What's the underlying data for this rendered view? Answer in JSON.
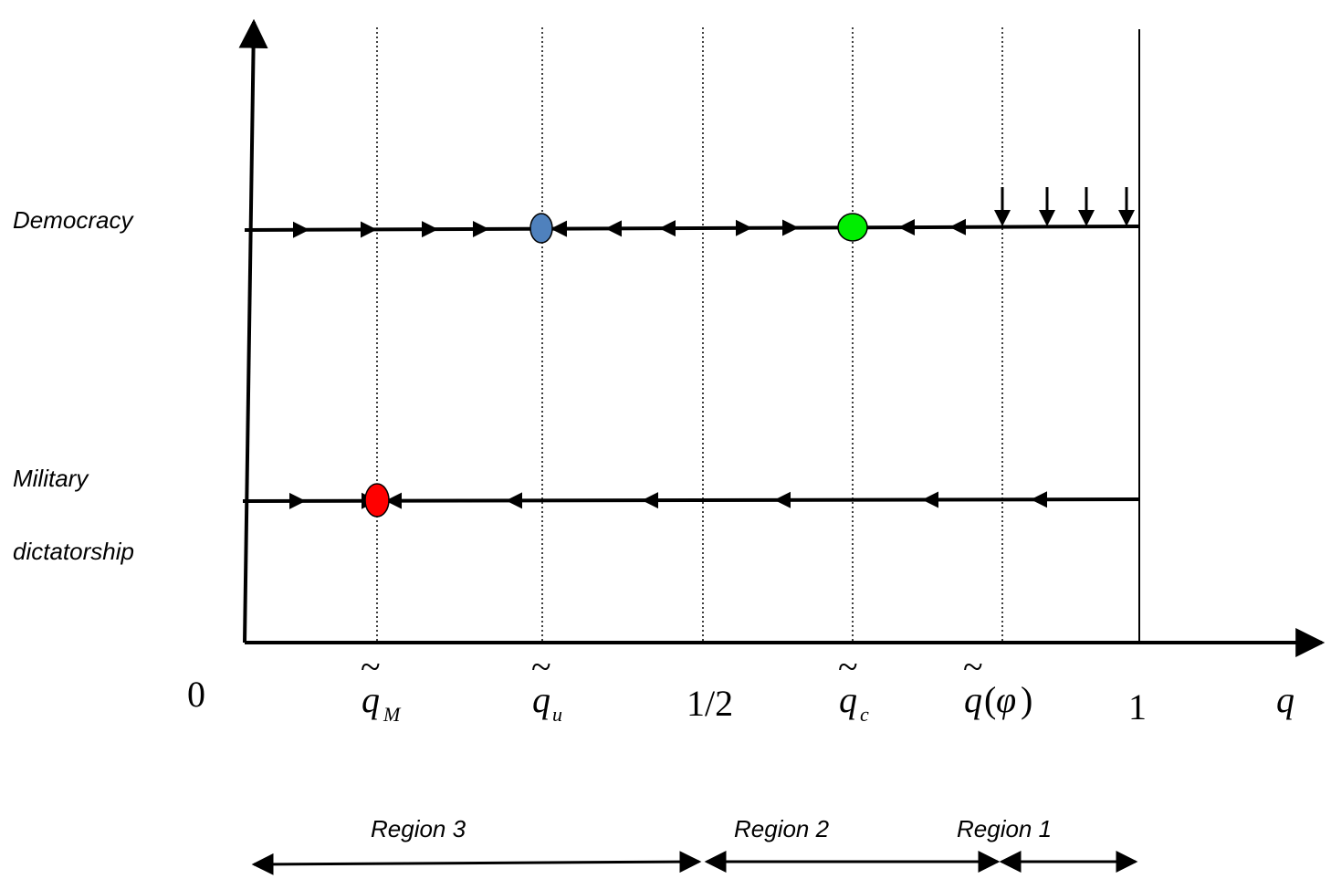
{
  "rows": {
    "democracy": "Democracy",
    "military_line1": "Military",
    "military_line2": "dictatorship"
  },
  "axis": {
    "origin": "0",
    "x_label": "q",
    "ticks": {
      "q_M": {
        "base": "q",
        "tilde": "~",
        "sub": "M"
      },
      "q_u": {
        "base": "q",
        "tilde": "~",
        "sub": "u"
      },
      "half": "1/2",
      "q_c": {
        "base": "q",
        "tilde": "~",
        "sub": "c"
      },
      "q_phi": {
        "base": "q",
        "tilde": "~",
        "paren_open": "(",
        "arg": "φ",
        "paren_close": ")"
      },
      "one": "1"
    }
  },
  "regions": {
    "region3": "Region 3",
    "region2": "Region 2",
    "region1": "Region 1"
  },
  "points": {
    "democracy_q_u": {
      "color": "#4f81bd"
    },
    "democracy_q_c": {
      "color": "#00ee00"
    },
    "military_q_M": {
      "color": "#ff0000"
    }
  }
}
